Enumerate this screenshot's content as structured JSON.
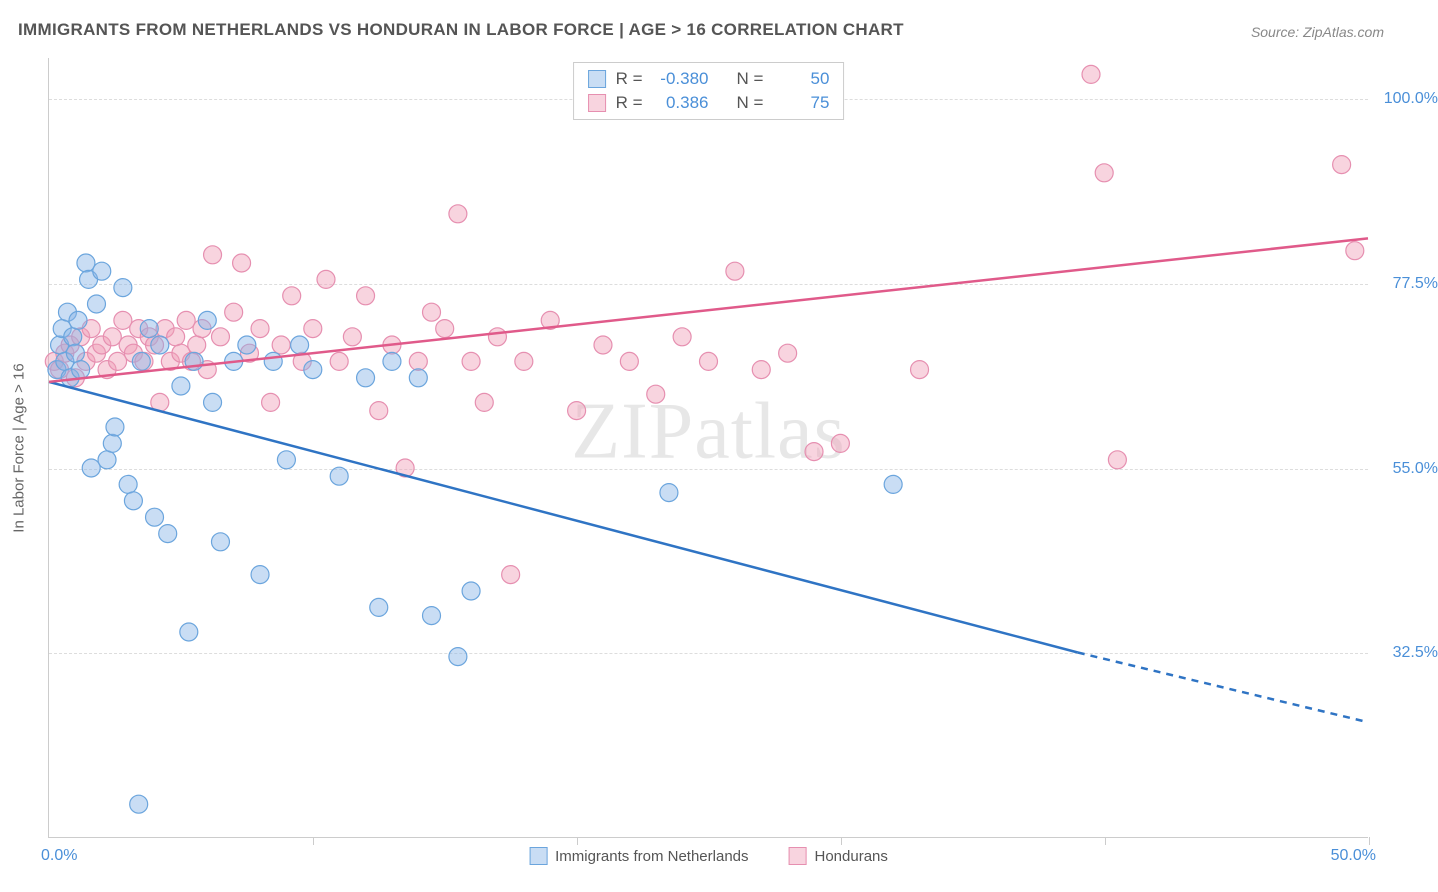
{
  "title": "IMMIGRANTS FROM NETHERLANDS VS HONDURAN IN LABOR FORCE | AGE > 16 CORRELATION CHART",
  "source": "Source: ZipAtlas.com",
  "y_axis_label": "In Labor Force | Age > 16",
  "watermark": "ZIPatlas",
  "axes": {
    "xlim": [
      0,
      50
    ],
    "ylim": [
      10,
      105
    ],
    "x_ticks": [
      0,
      10,
      20,
      30,
      40,
      50
    ],
    "y_gridlines": [
      32.5,
      55.0,
      77.5,
      100.0
    ],
    "y_tick_labels": [
      "32.5%",
      "55.0%",
      "77.5%",
      "100.0%"
    ],
    "x_min_label": "0.0%",
    "x_max_label": "50.0%"
  },
  "series_a": {
    "name": "Immigrants from Netherlands",
    "color_fill": "rgba(135,180,230,0.45)",
    "color_stroke": "#6ba5dd",
    "line_color": "#2f74c4",
    "R": "-0.380",
    "N": "50",
    "marker_r": 9,
    "trend": {
      "x1": 0,
      "y1": 65.5,
      "x2": 39,
      "y2": 32.5,
      "dash_to_x": 50,
      "dash_to_y": 24
    },
    "points": [
      [
        0.3,
        67
      ],
      [
        0.4,
        70
      ],
      [
        0.5,
        72
      ],
      [
        0.6,
        68
      ],
      [
        0.7,
        74
      ],
      [
        0.8,
        66
      ],
      [
        0.9,
        71
      ],
      [
        1.0,
        69
      ],
      [
        1.1,
        73
      ],
      [
        1.2,
        67
      ],
      [
        1.4,
        80
      ],
      [
        1.5,
        78
      ],
      [
        1.6,
        55
      ],
      [
        1.8,
        75
      ],
      [
        2.0,
        79
      ],
      [
        2.2,
        56
      ],
      [
        2.4,
        58
      ],
      [
        2.5,
        60
      ],
      [
        2.8,
        77
      ],
      [
        3.0,
        53
      ],
      [
        3.2,
        51
      ],
      [
        3.4,
        14
      ],
      [
        3.5,
        68
      ],
      [
        3.8,
        72
      ],
      [
        4.0,
        49
      ],
      [
        4.2,
        70
      ],
      [
        4.5,
        47
      ],
      [
        5.0,
        65
      ],
      [
        5.3,
        35
      ],
      [
        5.5,
        68
      ],
      [
        6.0,
        73
      ],
      [
        6.2,
        63
      ],
      [
        6.5,
        46
      ],
      [
        7.0,
        68
      ],
      [
        7.5,
        70
      ],
      [
        8.0,
        42
      ],
      [
        8.5,
        68
      ],
      [
        9.0,
        56
      ],
      [
        9.5,
        70
      ],
      [
        10.0,
        67
      ],
      [
        11.0,
        54
      ],
      [
        12.0,
        66
      ],
      [
        12.5,
        38
      ],
      [
        13.0,
        68
      ],
      [
        14.0,
        66
      ],
      [
        14.5,
        37
      ],
      [
        15.5,
        32
      ],
      [
        16.0,
        40
      ],
      [
        23.5,
        52
      ],
      [
        32.0,
        53
      ]
    ]
  },
  "series_b": {
    "name": "Hondurans",
    "color_fill": "rgba(240,160,185,0.45)",
    "color_stroke": "#e68fb0",
    "line_color": "#e05a8a",
    "R": "0.386",
    "N": "75",
    "marker_r": 9,
    "trend": {
      "x1": 0,
      "y1": 65.5,
      "x2": 50,
      "y2": 83
    },
    "points": [
      [
        0.2,
        68
      ],
      [
        0.4,
        67
      ],
      [
        0.6,
        69
      ],
      [
        0.8,
        70
      ],
      [
        1.0,
        66
      ],
      [
        1.2,
        71
      ],
      [
        1.4,
        68
      ],
      [
        1.6,
        72
      ],
      [
        1.8,
        69
      ],
      [
        2.0,
        70
      ],
      [
        2.2,
        67
      ],
      [
        2.4,
        71
      ],
      [
        2.6,
        68
      ],
      [
        2.8,
        73
      ],
      [
        3.0,
        70
      ],
      [
        3.2,
        69
      ],
      [
        3.4,
        72
      ],
      [
        3.6,
        68
      ],
      [
        3.8,
        71
      ],
      [
        4.0,
        70
      ],
      [
        4.2,
        63
      ],
      [
        4.4,
        72
      ],
      [
        4.6,
        68
      ],
      [
        4.8,
        71
      ],
      [
        5.0,
        69
      ],
      [
        5.2,
        73
      ],
      [
        5.4,
        68
      ],
      [
        5.6,
        70
      ],
      [
        5.8,
        72
      ],
      [
        6.0,
        67
      ],
      [
        6.2,
        81
      ],
      [
        6.5,
        71
      ],
      [
        7.0,
        74
      ],
      [
        7.3,
        80
      ],
      [
        7.6,
        69
      ],
      [
        8.0,
        72
      ],
      [
        8.4,
        63
      ],
      [
        8.8,
        70
      ],
      [
        9.2,
        76
      ],
      [
        9.6,
        68
      ],
      [
        10.0,
        72
      ],
      [
        10.5,
        78
      ],
      [
        11.0,
        68
      ],
      [
        11.5,
        71
      ],
      [
        12.0,
        76
      ],
      [
        12.5,
        62
      ],
      [
        13.0,
        70
      ],
      [
        13.5,
        55
      ],
      [
        14.0,
        68
      ],
      [
        14.5,
        74
      ],
      [
        15.0,
        72
      ],
      [
        15.5,
        86
      ],
      [
        16.0,
        68
      ],
      [
        16.5,
        63
      ],
      [
        17.0,
        71
      ],
      [
        17.5,
        42
      ],
      [
        18.0,
        68
      ],
      [
        19.0,
        73
      ],
      [
        20.0,
        62
      ],
      [
        21.0,
        70
      ],
      [
        22.0,
        68
      ],
      [
        23.0,
        64
      ],
      [
        24.0,
        71
      ],
      [
        25.0,
        68
      ],
      [
        26.0,
        79
      ],
      [
        27.0,
        67
      ],
      [
        28.0,
        69
      ],
      [
        29.0,
        57
      ],
      [
        30.0,
        58
      ],
      [
        33.0,
        67
      ],
      [
        39.5,
        103
      ],
      [
        40.0,
        91
      ],
      [
        40.5,
        56
      ],
      [
        49.0,
        92
      ],
      [
        49.5,
        81.5
      ]
    ]
  },
  "bottom_legend": {
    "a_label": "Immigrants from Netherlands",
    "b_label": "Hondurans"
  },
  "stats_labels": {
    "R": "R =",
    "N": "N ="
  }
}
